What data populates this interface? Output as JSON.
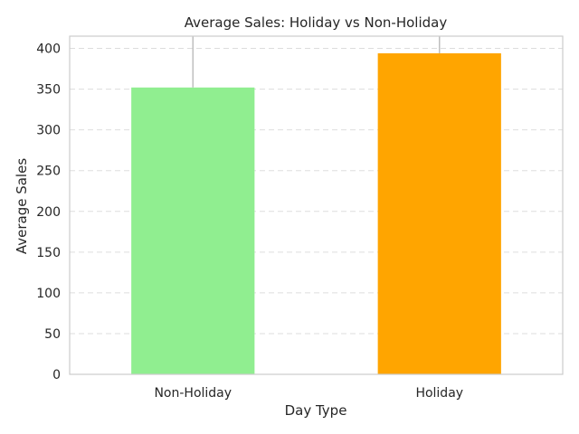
{
  "chart_data": {
    "type": "bar",
    "title": "Average Sales: Holiday vs Non-Holiday",
    "xlabel": "Day Type",
    "ylabel": "Average Sales",
    "categories": [
      "Non-Holiday",
      "Holiday"
    ],
    "values": [
      352,
      394
    ],
    "colors": [
      "#90EE90",
      "#FFA500"
    ],
    "ylim": [
      0,
      415
    ],
    "yticks": [
      0,
      50,
      100,
      150,
      200,
      250,
      300,
      350,
      400
    ],
    "error_upper": [
      415,
      415
    ],
    "grid": "y-dashed",
    "grid_color": "#dddddd",
    "frame_color": "#cccccc",
    "text_color": "#262626"
  }
}
